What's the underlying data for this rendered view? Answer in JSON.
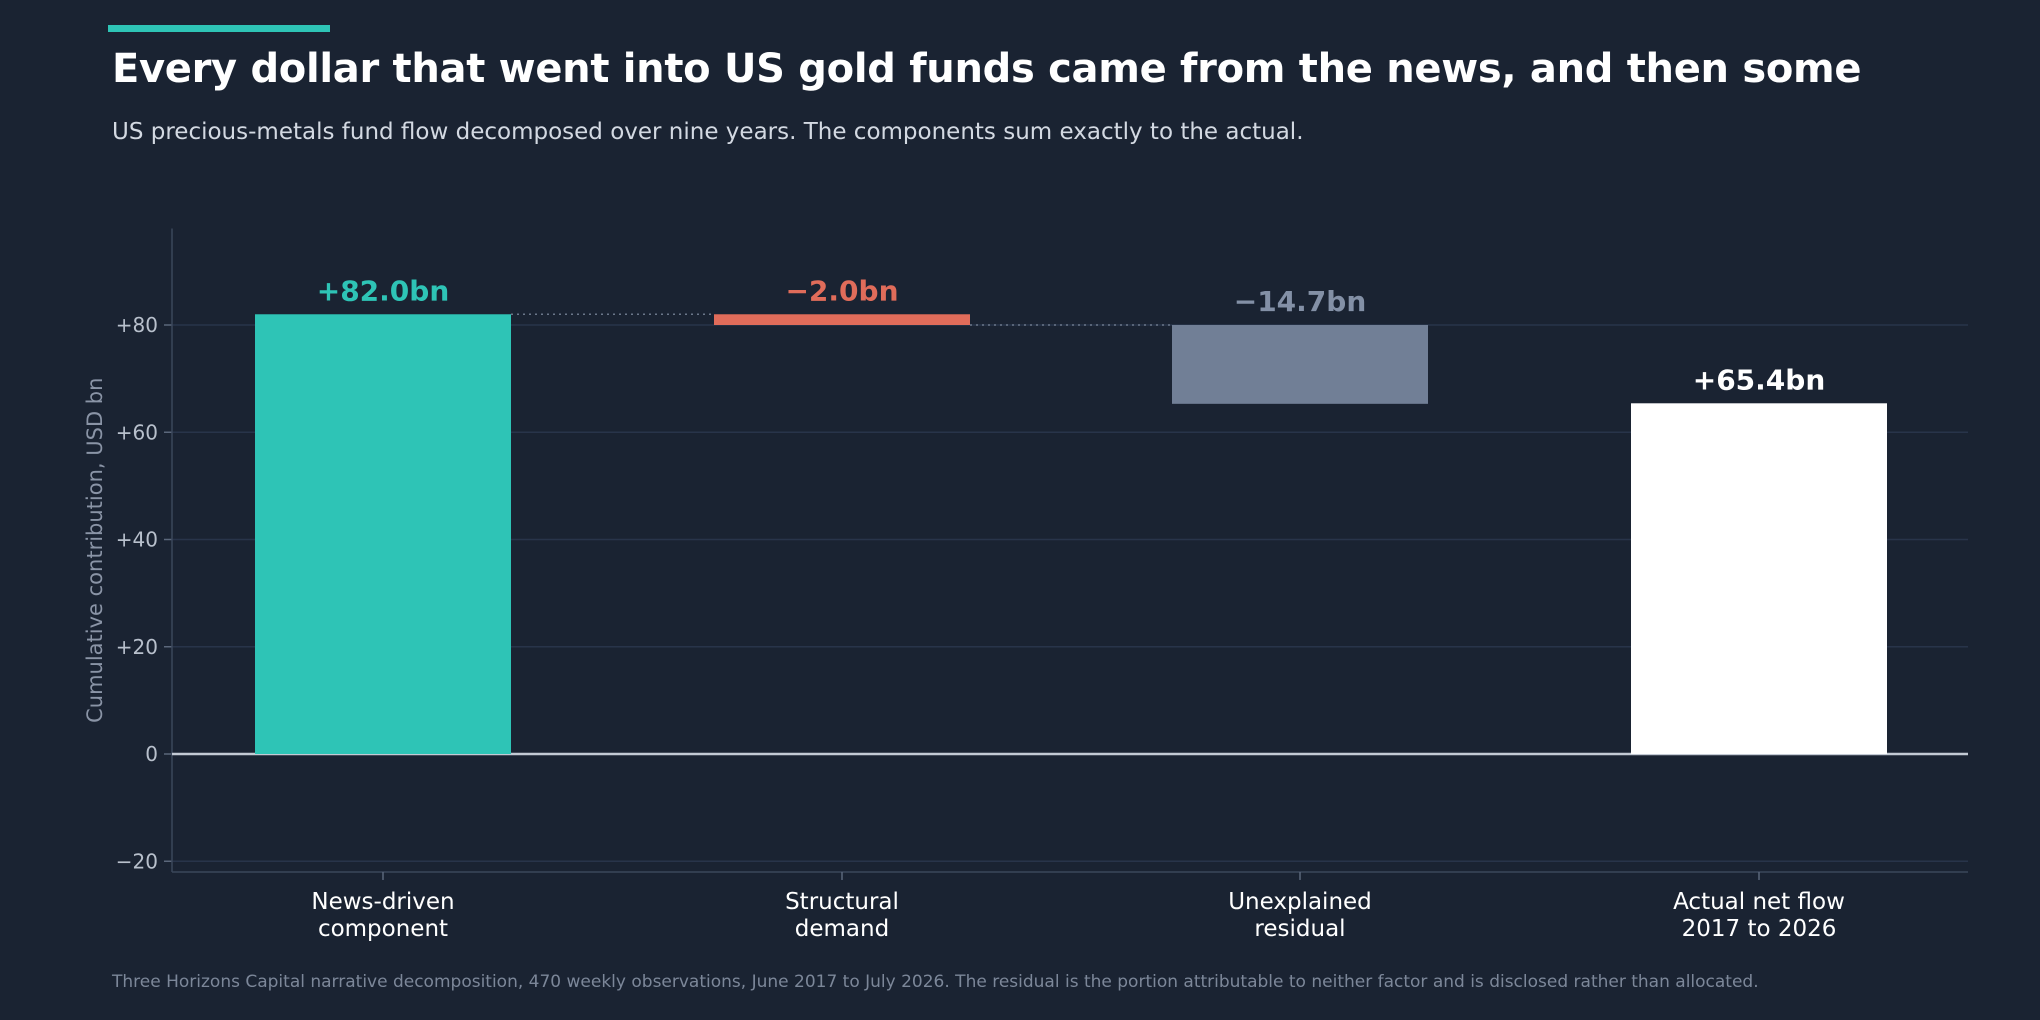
{
  "header": {
    "title": "Every dollar that went into US gold funds came from the news, and then some",
    "subtitle": "US precious-metals fund flow decomposed over nine years. The components sum exactly to the actual."
  },
  "footer": {
    "note": "Three Horizons Capital narrative decomposition, 470 weekly observations, June 2017 to July 2026. The residual is the portion attributable to neither factor and is disclosed rather than allocated."
  },
  "colors": {
    "accent": "#2ec4b6",
    "positive": "#2ec4b6",
    "negative": "#e06c5a",
    "residual": "#717f96",
    "total": "#ffffff",
    "value_label_residual": "#8390a6"
  },
  "chart_data": {
    "type": "bar",
    "subtype": "waterfall",
    "ylabel": "Cumulative contribution, USD bn",
    "ylim": [
      -22,
      98
    ],
    "yticks": [
      -20,
      0,
      20,
      40,
      60,
      80
    ],
    "ytick_labels": [
      "−20",
      "0",
      "+20",
      "+40",
      "+60",
      "+80"
    ],
    "grid": true,
    "steps": [
      {
        "label_lines": [
          "News-driven",
          "component"
        ],
        "value": 82.0,
        "value_label": "+82.0bn",
        "kind": "positive"
      },
      {
        "label_lines": [
          "Structural",
          "demand"
        ],
        "value": -2.0,
        "value_label": "−2.0bn",
        "kind": "negative"
      },
      {
        "label_lines": [
          "Unexplained",
          "residual"
        ],
        "value": -14.7,
        "value_label": "−14.7bn",
        "kind": "residual"
      },
      {
        "label_lines": [
          "Actual net flow",
          "2017 to 2026"
        ],
        "value": 65.4,
        "value_label": "+65.4bn",
        "kind": "total"
      }
    ]
  }
}
